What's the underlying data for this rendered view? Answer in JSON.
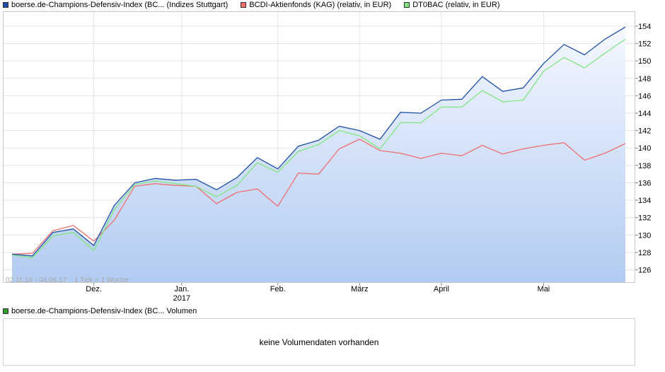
{
  "legend": {
    "items": [
      {
        "label": "boerse.de-Champions-Defensiv-Index (BC... (Indizes Stuttgart)",
        "color": "#1f4fa8"
      },
      {
        "label": "BCDI-Aktienfonds (KAG) (relativ, in EUR)",
        "color": "#ef6f6f"
      },
      {
        "label": "DT0BAC (relativ, in EUR)",
        "color": "#7fe67f"
      }
    ]
  },
  "info_text": "02.11.16 - 04.06.17    1 Tick = 1 Woche",
  "volume": {
    "legend_label": "boerse.de-Champions-Defensiv-Index (BC... Volumen",
    "legend_color": "#2fa02f",
    "message": "keine Volumendaten vorhanden"
  },
  "chart_data": {
    "type": "line",
    "x_tick_labels": [
      "Dez.",
      "Jan.",
      "Feb.",
      "März",
      "April",
      "Mai"
    ],
    "x_tick_sublabels": [
      "",
      "2017",
      "",
      "",
      "",
      ""
    ],
    "x_tick_index": [
      4,
      8.3,
      13,
      17,
      21,
      26
    ],
    "y_ticks": [
      126,
      128,
      130,
      132,
      134,
      136,
      138,
      140,
      142,
      144,
      146,
      148,
      150,
      152,
      154
    ],
    "ylim": [
      124.5,
      155.7
    ],
    "grid": true,
    "y_axis_side": "right",
    "series": [
      {
        "name": "boerse.de-Champions-Defensiv-Index (BC... (Indizes Stuttgart)",
        "color": "#1f4fa8",
        "area": true,
        "values": [
          127.8,
          127.6,
          130.3,
          130.7,
          128.8,
          133.4,
          136.0,
          136.5,
          136.3,
          136.4,
          135.2,
          136.6,
          138.9,
          137.6,
          140.2,
          140.9,
          142.5,
          142.0,
          141.0,
          144.1,
          144.0,
          145.5,
          145.6,
          148.2,
          146.5,
          146.9,
          149.7,
          151.9,
          150.7,
          152.5,
          153.9
        ]
      },
      {
        "name": "BCDI-Aktienfonds (KAG) (relativ, in EUR)",
        "color": "#ef6f6f",
        "area": false,
        "values": [
          127.8,
          127.9,
          130.5,
          131.1,
          129.3,
          131.7,
          135.6,
          135.9,
          135.7,
          135.6,
          133.6,
          134.9,
          135.3,
          133.3,
          137.1,
          137.0,
          139.9,
          141.0,
          139.7,
          139.4,
          138.8,
          139.4,
          139.1,
          140.3,
          139.3,
          139.9,
          140.3,
          140.6,
          138.6,
          139.4,
          140.5
        ]
      },
      {
        "name": "DT0BAC (relativ, in EUR)",
        "color": "#7fe67f",
        "area": false,
        "values": [
          127.7,
          127.4,
          129.9,
          130.3,
          128.2,
          132.9,
          135.8,
          136.2,
          135.9,
          135.6,
          134.4,
          135.7,
          138.3,
          137.2,
          139.6,
          140.4,
          142.0,
          141.4,
          139.9,
          142.9,
          142.9,
          144.7,
          144.7,
          146.6,
          145.3,
          145.5,
          148.8,
          150.4,
          149.2,
          150.9,
          152.5
        ]
      }
    ]
  }
}
